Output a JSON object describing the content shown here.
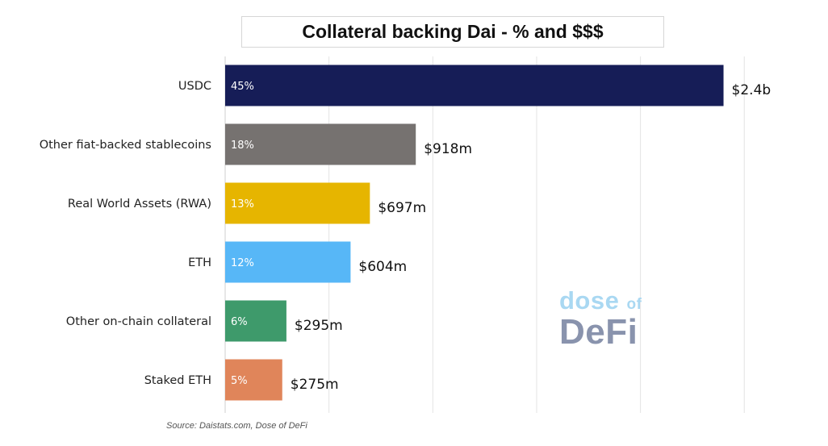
{
  "chart_data": {
    "type": "bar",
    "orientation": "horizontal",
    "title": "Collateral backing Dai - % and $$$",
    "categories": [
      "USDC",
      "Other fiat-backed stablecoins",
      "Real World Assets (RWA)",
      "ETH",
      "Other on-chain collateral",
      "Staked ETH"
    ],
    "percent_labels": [
      "45%",
      "18%",
      "13%",
      "12%",
      "6%",
      "5%"
    ],
    "value_labels": [
      "$2.4b",
      "$918m",
      "$697m",
      "$604m",
      "$295m",
      "$275m"
    ],
    "values": [
      2400,
      918,
      697,
      604,
      295,
      275
    ],
    "value_unit": "$m",
    "colors": [
      "#161d57",
      "#767270",
      "#e6b500",
      "#57b7f7",
      "#3e9a6b",
      "#e0855a"
    ],
    "xlim": [
      0,
      2600
    ],
    "grid": true
  },
  "watermark": {
    "line1": "dose",
    "line1_small": "of",
    "line2": "DeFi"
  },
  "source": "Source: Daistats.com, Dose of DeFi"
}
